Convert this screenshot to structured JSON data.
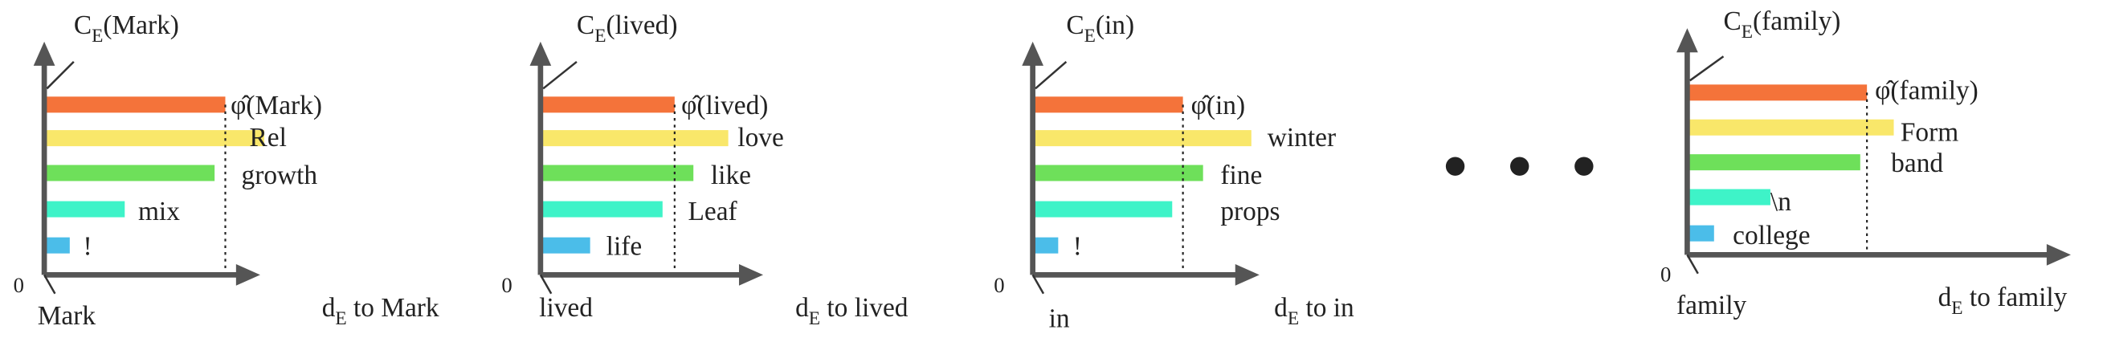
{
  "panels": [
    {
      "ce": {
        "symbol": "C",
        "subscript": "E",
        "arg": "(Mark)"
      },
      "phi": "φ̂(Mark)",
      "labels": [
        "Rel",
        "growth",
        "mix",
        "!"
      ],
      "origin": "0",
      "token": "Mark",
      "axis": {
        "symbol": "d",
        "subscript": "E",
        "text": " to Mark"
      }
    },
    {
      "ce": {
        "symbol": "C",
        "subscript": "E",
        "arg": "(lived)"
      },
      "phi": "φ̂(lived)",
      "labels": [
        "love",
        "like",
        "Leaf",
        "life"
      ],
      "origin": "0",
      "token": "lived",
      "axis": {
        "symbol": "d",
        "subscript": "E",
        "text": " to lived"
      }
    },
    {
      "ce": {
        "symbol": "C",
        "subscript": "E",
        "arg": "(in)"
      },
      "phi": "φ̂(in)",
      "labels": [
        "winter",
        "fine",
        "props",
        "!"
      ],
      "origin": "0",
      "token": "in",
      "axis": {
        "symbol": "d",
        "subscript": "E",
        "text": "  to  in"
      }
    },
    {
      "ce": {
        "symbol": "C",
        "subscript": "E",
        "arg": "(family)"
      },
      "phi": "φ̂(family)",
      "labels": [
        "Form",
        "band",
        "\\n",
        "college"
      ],
      "origin": "0",
      "token": "family",
      "axis": {
        "symbol": "d",
        "subscript": "E",
        "text": " to family"
      }
    }
  ]
}
